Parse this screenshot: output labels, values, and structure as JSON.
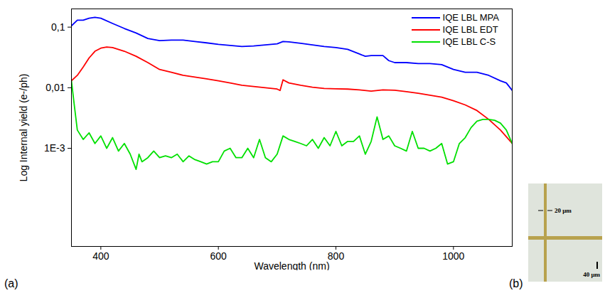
{
  "chart_data": [
    {
      "type": "line",
      "panel_label": "(a)",
      "x_label": "Wavelength (nm)",
      "y_label": "Log Internal yield (e-/ph)",
      "log": "y",
      "grid": false,
      "legend": "upper right",
      "xlim": [
        350,
        1100
      ],
      "xticks": [
        400,
        600,
        800,
        1000
      ],
      "ylim": [
        2.4e-05,
        0.2
      ],
      "yticks": [
        {
          "value": 0.001,
          "label": "1E-3"
        },
        {
          "value": 0.01,
          "label": "0,01"
        },
        {
          "value": 0.1,
          "label": "0,1"
        }
      ],
      "series": [
        {
          "name": "IQE LBL MPA",
          "color": "#0000ff",
          "x": [
            350,
            360,
            370,
            380,
            390,
            400,
            420,
            440,
            460,
            480,
            500,
            520,
            540,
            560,
            580,
            600,
            620,
            640,
            660,
            680,
            700,
            710,
            720,
            740,
            760,
            780,
            800,
            820,
            840,
            850,
            860,
            880,
            890,
            900,
            920,
            940,
            960,
            980,
            1000,
            1020,
            1040,
            1060,
            1080,
            1090,
            1100
          ],
          "values": [
            0.105,
            0.13,
            0.13,
            0.14,
            0.145,
            0.14,
            0.115,
            0.095,
            0.08,
            0.065,
            0.06,
            0.061,
            0.061,
            0.058,
            0.055,
            0.052,
            0.05,
            0.048,
            0.049,
            0.051,
            0.053,
            0.058,
            0.057,
            0.054,
            0.051,
            0.048,
            0.046,
            0.043,
            0.036,
            0.033,
            0.034,
            0.034,
            0.028,
            0.026,
            0.026,
            0.025,
            0.025,
            0.024,
            0.02,
            0.018,
            0.018,
            0.016,
            0.013,
            0.012,
            0.009
          ]
        },
        {
          "name": "IQE LBL EDT",
          "color": "#ff0000",
          "x": [
            350,
            360,
            370,
            380,
            390,
            400,
            410,
            420,
            440,
            460,
            480,
            500,
            520,
            540,
            560,
            580,
            600,
            620,
            640,
            660,
            680,
            700,
            705,
            710,
            720,
            740,
            760,
            780,
            800,
            820,
            840,
            860,
            880,
            900,
            920,
            940,
            960,
            980,
            1000,
            1020,
            1040,
            1060,
            1080,
            1100
          ],
          "values": [
            0.013,
            0.016,
            0.022,
            0.031,
            0.04,
            0.045,
            0.047,
            0.046,
            0.04,
            0.033,
            0.026,
            0.02,
            0.018,
            0.016,
            0.015,
            0.014,
            0.013,
            0.012,
            0.011,
            0.0105,
            0.01,
            0.0095,
            0.009,
            0.0135,
            0.012,
            0.011,
            0.0102,
            0.0097,
            0.0096,
            0.0095,
            0.0092,
            0.0088,
            0.0092,
            0.0091,
            0.0086,
            0.0081,
            0.0075,
            0.007,
            0.0061,
            0.0052,
            0.0042,
            0.003,
            0.002,
            0.0012
          ]
        },
        {
          "name": "IQE LBL C-S",
          "color": "#00e000",
          "x": [
            350,
            355,
            360,
            370,
            380,
            390,
            400,
            410,
            420,
            430,
            440,
            450,
            460,
            465,
            470,
            480,
            490,
            500,
            510,
            520,
            530,
            540,
            550,
            560,
            570,
            580,
            590,
            600,
            610,
            620,
            630,
            640,
            650,
            660,
            670,
            680,
            690,
            700,
            710,
            720,
            730,
            740,
            750,
            760,
            770,
            780,
            790,
            800,
            810,
            820,
            830,
            840,
            850,
            860,
            870,
            880,
            890,
            900,
            910,
            920,
            930,
            940,
            950,
            960,
            970,
            980,
            990,
            1000,
            1010,
            1020,
            1030,
            1040,
            1050,
            1060,
            1070,
            1080,
            1090,
            1100
          ],
          "values": [
            0.013,
            0.005,
            0.002,
            0.0014,
            0.0018,
            0.0012,
            0.0016,
            0.001,
            0.0015,
            0.0009,
            0.0012,
            0.0008,
            0.00045,
            0.0008,
            0.0006,
            0.0007,
            0.0009,
            0.0007,
            0.00075,
            0.0007,
            0.0008,
            0.0006,
            0.00075,
            0.00065,
            0.0006,
            0.00055,
            0.0006,
            0.0006,
            0.0009,
            0.001,
            0.0007,
            0.0007,
            0.001,
            0.0007,
            0.0014,
            0.0007,
            0.0006,
            0.0008,
            0.0016,
            0.0014,
            0.0013,
            0.0012,
            0.0011,
            0.0014,
            0.001,
            0.0015,
            0.0011,
            0.0019,
            0.0011,
            0.0013,
            0.0013,
            0.0016,
            0.0008,
            0.0013,
            0.0033,
            0.0014,
            0.0016,
            0.0011,
            0.001,
            0.0009,
            0.0019,
            0.001,
            0.001,
            0.0009,
            0.001,
            0.0012,
            0.00055,
            0.0006,
            0.0012,
            0.0015,
            0.0022,
            0.0028,
            0.003,
            0.003,
            0.0029,
            0.0026,
            0.002,
            0.0012
          ]
        }
      ]
    },
    {
      "type": "image",
      "panel_label": "(b)",
      "annotations": [
        "20 μm",
        "40 μm"
      ]
    }
  ]
}
